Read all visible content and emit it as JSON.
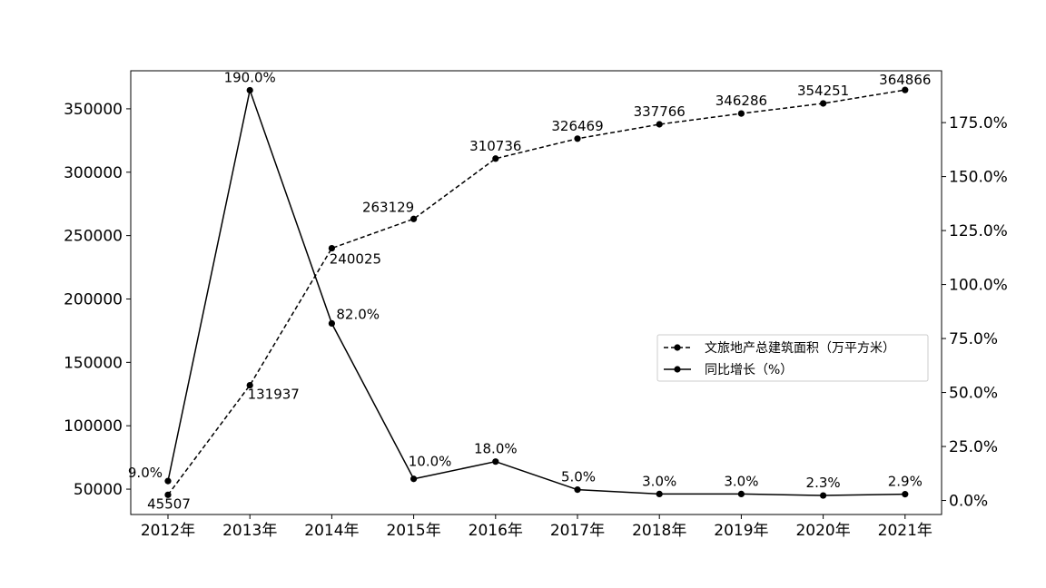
{
  "chart_data": {
    "type": "line",
    "categories": [
      "2012年",
      "2013年",
      "2014年",
      "2015年",
      "2016年",
      "2017年",
      "2018年",
      "2019年",
      "2020年",
      "2021年"
    ],
    "series": [
      {
        "name": "文旅地产总建筑面积（万平方米）",
        "axis": "left",
        "line_style": "dashed",
        "values": [
          45507,
          131937,
          240025,
          263129,
          310736,
          326469,
          337766,
          346286,
          354251,
          364866
        ],
        "labels": [
          "45507",
          "131937",
          "240025",
          "263129",
          "310736",
          "326469",
          "337766",
          "346286",
          "354251",
          "364866"
        ]
      },
      {
        "name": "同比增长（%）",
        "axis": "right",
        "line_style": "solid",
        "values": [
          9.0,
          190.0,
          82.0,
          10.0,
          18.0,
          5.0,
          3.0,
          3.0,
          2.3,
          2.9
        ],
        "labels": [
          "9.0%",
          "190.0%",
          "82.0%",
          "10.0%",
          "18.0%",
          "5.0%",
          "3.0%",
          "3.0%",
          "2.3%",
          "2.9%"
        ]
      }
    ],
    "y_left": {
      "ticks": [
        50000,
        100000,
        150000,
        200000,
        250000,
        300000,
        350000
      ],
      "tick_labels": [
        "50000",
        "100000",
        "150000",
        "200000",
        "250000",
        "300000",
        "350000"
      ],
      "ylim": [
        30000,
        380000
      ]
    },
    "y_right": {
      "ticks": [
        0,
        25,
        50,
        75,
        100,
        125,
        150,
        175
      ],
      "tick_labels": [
        "0.0%",
        "25.0%",
        "50.0%",
        "75.0%",
        "100.0%",
        "125.0%",
        "150.0%",
        "175.0%"
      ],
      "ylim": [
        -6.5,
        199
      ]
    },
    "legend": {
      "placement": "center-right"
    },
    "grid": false,
    "colors": {
      "line": "#000000",
      "marker": "#000000"
    }
  }
}
